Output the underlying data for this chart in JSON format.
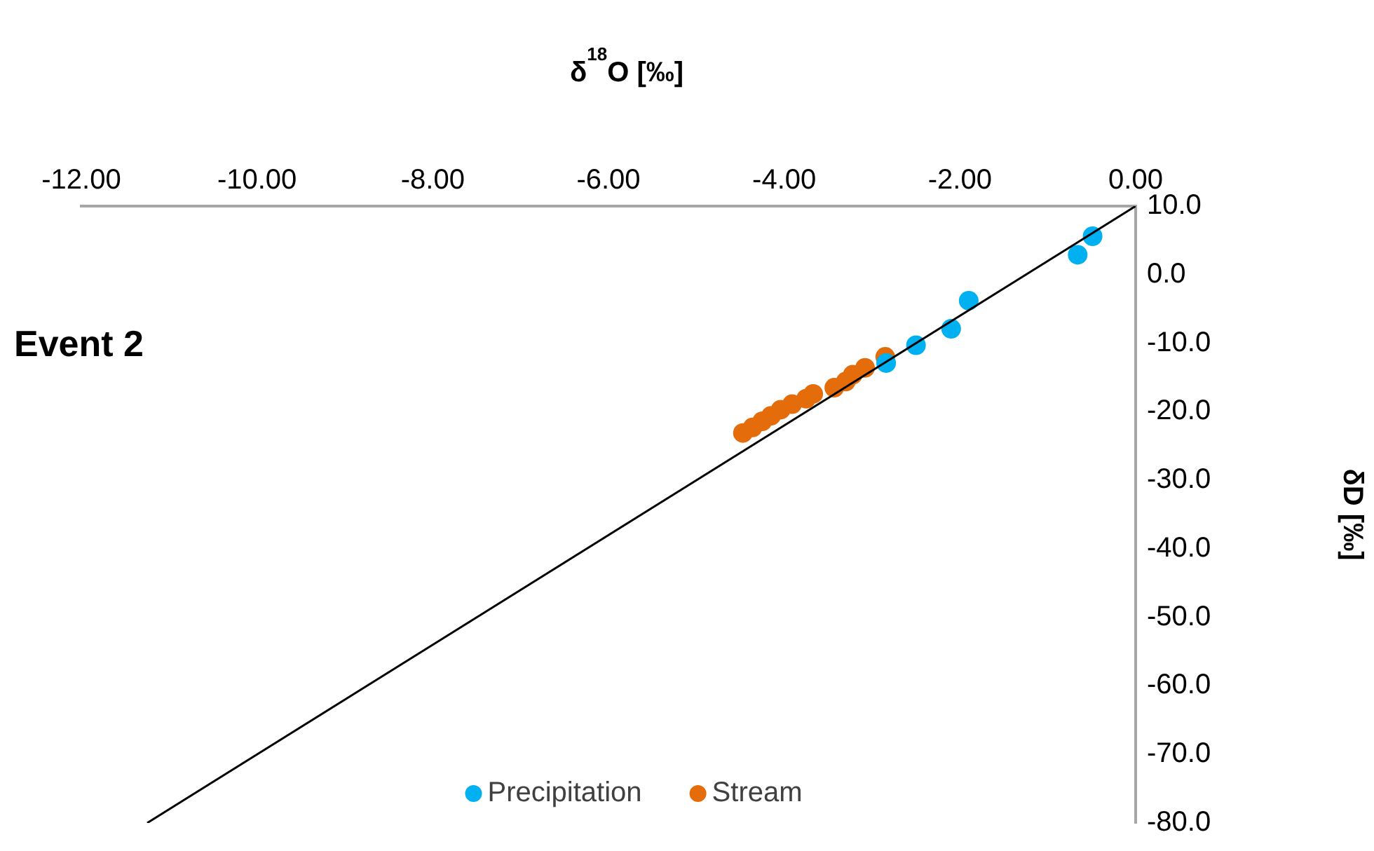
{
  "chart_data": {
    "type": "scatter",
    "title": "Event 2",
    "xlabel": "δ$^{18}$O [‰]",
    "ylabel": "δD [‰]",
    "xlim": [
      -12,
      0
    ],
    "ylim": [
      -80,
      10
    ],
    "xticks": [
      {
        "value": -12,
        "label": "-12.00"
      },
      {
        "value": -10,
        "label": "-10.00"
      },
      {
        "value": -8,
        "label": "-8.00"
      },
      {
        "value": -6,
        "label": "-6.00"
      },
      {
        "value": -4,
        "label": "-4.00"
      },
      {
        "value": -2,
        "label": "-2.00"
      },
      {
        "value": 0,
        "label": "0.00"
      }
    ],
    "yticks": [
      {
        "value": 10,
        "label": "10.0"
      },
      {
        "value": 0,
        "label": "0.0"
      },
      {
        "value": -10,
        "label": "-10.0"
      },
      {
        "value": -20,
        "label": "-20.0"
      },
      {
        "value": -30,
        "label": "-30.0"
      },
      {
        "value": -40,
        "label": "-40.0"
      },
      {
        "value": -50,
        "label": "-50.0"
      },
      {
        "value": -60,
        "label": "-60.0"
      },
      {
        "value": -70,
        "label": "-70.0"
      },
      {
        "value": -80,
        "label": "-80.0"
      }
    ],
    "grid": false,
    "legend": "bottom",
    "marker": "circle",
    "series": [
      {
        "type": "line",
        "marker": "none",
        "color": "#000000",
        "x": [
          -11.25,
          0
        ],
        "values": [
          -80,
          10
        ]
      },
      {
        "name": "Precipitation",
        "color": "#00b0f0",
        "x": [
          -0.49,
          -0.66,
          -1.9,
          -2.1,
          -2.5,
          -2.84
        ],
        "values": [
          5.6,
          2.9,
          -3.8,
          -7.9,
          -10.3,
          -12.9
        ]
      },
      {
        "name": "Stream",
        "color": "#e46c0a",
        "x": [
          -2.85,
          -3.08,
          -3.22,
          -3.3,
          -3.43,
          -3.67,
          -3.75,
          -3.91,
          -4.04,
          -4.15,
          -4.25,
          -4.36,
          -4.47
        ],
        "values": [
          -12.0,
          -13.6,
          -14.6,
          -15.6,
          -16.5,
          -17.4,
          -18.1,
          -18.9,
          -19.7,
          -20.6,
          -21.4,
          -22.3,
          -23.1
        ]
      }
    ]
  }
}
